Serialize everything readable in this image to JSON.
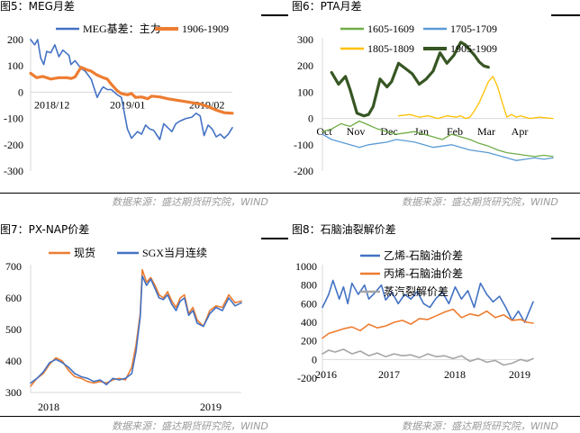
{
  "page": {
    "captions": [
      "图5：MEG月差",
      "图6：PTA月差",
      "图7：PX-NAP价差",
      "图8：石脑油裂解价差"
    ],
    "source": "数据来源：盛达期货研究院，WIND"
  },
  "chart_data": [
    {
      "type": "line",
      "title": "",
      "yticks": [
        -300,
        -200,
        -100,
        0,
        100,
        200
      ],
      "ylim": [
        -300,
        200
      ],
      "xticks": [
        "2018/12",
        "2019/01",
        "2019/02"
      ],
      "legend": "top",
      "grid": false,
      "colors": {
        "MEG基差：主力": "#4472C4",
        "1906-1909": "#ED7D31"
      },
      "series": [
        {
          "name": "MEG基差：主力",
          "color": "#4472C4",
          "width": 1.6,
          "x": [
            0,
            0.02,
            0.035,
            0.05,
            0.065,
            0.08,
            0.1,
            0.12,
            0.14,
            0.16,
            0.19,
            0.2,
            0.22,
            0.25,
            0.27,
            0.3,
            0.33,
            0.35,
            0.36,
            0.38,
            0.4,
            0.43,
            0.45,
            0.48,
            0.5,
            0.53,
            0.55,
            0.57,
            0.59,
            0.61,
            0.64,
            0.66,
            0.7,
            0.72,
            0.74,
            0.77,
            0.8,
            0.82,
            0.84,
            0.86,
            0.88,
            0.9,
            0.92,
            0.94,
            0.96,
            0.98,
            1.0
          ],
          "y": [
            200,
            180,
            200,
            130,
            105,
            155,
            150,
            180,
            135,
            160,
            140,
            105,
            120,
            90,
            80,
            50,
            -20,
            10,
            20,
            10,
            10,
            -10,
            -20,
            -140,
            -175,
            -150,
            -160,
            -125,
            -140,
            -145,
            -180,
            -120,
            -150,
            -120,
            -110,
            -100,
            -95,
            -80,
            -90,
            -165,
            -125,
            -140,
            -170,
            -160,
            -175,
            -160,
            -135
          ]
        },
        {
          "name": "1906-1909",
          "color": "#ED7D31",
          "width": 3.2,
          "x": [
            0,
            0.03,
            0.06,
            0.1,
            0.14,
            0.18,
            0.2,
            0.22,
            0.25,
            0.28,
            0.3,
            0.33,
            0.36,
            0.38,
            0.4,
            0.43,
            0.45,
            0.48,
            0.5,
            0.52,
            0.55,
            0.58,
            0.6,
            0.64,
            0.68,
            0.72,
            0.76,
            0.8,
            0.84,
            0.88,
            0.92,
            0.96,
            1.0
          ],
          "y": [
            72,
            55,
            60,
            50,
            55,
            55,
            52,
            58,
            95,
            85,
            80,
            65,
            55,
            50,
            30,
            5,
            -5,
            -10,
            -5,
            -20,
            -18,
            -25,
            -15,
            -18,
            -25,
            -30,
            -35,
            -40,
            -45,
            -55,
            -68,
            -78,
            -80
          ]
        }
      ]
    },
    {
      "type": "line",
      "title": "",
      "yticks": [
        -200,
        -100,
        0,
        100,
        200,
        300
      ],
      "ylim": [
        -200,
        300
      ],
      "xticks": [
        "Oct",
        "Nov",
        "Dec",
        "Jan",
        "Feb",
        "Mar",
        "Apr"
      ],
      "legend": "top",
      "grid": false,
      "colors": {
        "1605-1609": "#70AD47",
        "1705-1709": "#5B9BD5",
        "1805-1809": "#FFC000",
        "1905-1909": "#375623"
      },
      "series": [
        {
          "name": "1605-1609",
          "color": "#70AD47",
          "width": 1.3,
          "x": [
            0,
            0.04,
            0.08,
            0.12,
            0.16,
            0.2,
            0.24,
            0.28,
            0.32,
            0.36,
            0.4,
            0.44,
            0.48,
            0.52,
            0.56,
            0.6,
            0.64,
            0.68,
            0.72,
            0.76,
            0.8,
            0.84,
            0.88,
            0.92,
            0.96,
            1.0
          ],
          "y": [
            -50,
            -40,
            -20,
            -30,
            -10,
            -25,
            -40,
            -50,
            -60,
            -55,
            -50,
            -60,
            -70,
            -80,
            -60,
            -70,
            -80,
            -95,
            -105,
            -120,
            -130,
            -135,
            -140,
            -145,
            -140,
            -145
          ]
        },
        {
          "name": "1705-1709",
          "color": "#5B9BD5",
          "width": 1.3,
          "x": [
            0,
            0.04,
            0.08,
            0.12,
            0.16,
            0.2,
            0.24,
            0.28,
            0.32,
            0.36,
            0.4,
            0.44,
            0.48,
            0.52,
            0.56,
            0.6,
            0.64,
            0.68,
            0.72,
            0.76,
            0.8,
            0.84,
            0.88,
            0.92,
            0.96,
            1.0
          ],
          "y": [
            -60,
            -80,
            -90,
            -100,
            -110,
            -100,
            -95,
            -90,
            -80,
            -85,
            -90,
            -100,
            -110,
            -105,
            -100,
            -110,
            -120,
            -125,
            -130,
            -140,
            -150,
            -160,
            -155,
            -150,
            -155,
            -150
          ]
        },
        {
          "name": "1805-1809",
          "color": "#FFC000",
          "width": 1.3,
          "x": [
            0.33,
            0.38,
            0.42,
            0.46,
            0.5,
            0.54,
            0.58,
            0.6,
            0.62,
            0.64,
            0.66,
            0.68,
            0.7,
            0.72,
            0.74,
            0.76,
            0.78,
            0.8,
            0.82,
            0.84,
            0.86,
            0.9,
            0.94,
            1.0
          ],
          "y": [
            10,
            15,
            5,
            10,
            0,
            10,
            5,
            10,
            0,
            5,
            30,
            60,
            100,
            140,
            160,
            120,
            60,
            5,
            15,
            5,
            10,
            0,
            5,
            0
          ]
        },
        {
          "name": "1905-1909",
          "color": "#375623",
          "width": 3.2,
          "x": [
            0.04,
            0.07,
            0.1,
            0.12,
            0.15,
            0.18,
            0.2,
            0.22,
            0.25,
            0.28,
            0.3,
            0.33,
            0.36,
            0.39,
            0.42,
            0.45,
            0.48,
            0.51,
            0.54,
            0.57,
            0.6,
            0.62,
            0.64,
            0.66,
            0.68,
            0.7,
            0.72
          ],
          "y": [
            175,
            130,
            160,
            110,
            20,
            10,
            15,
            45,
            150,
            120,
            140,
            210,
            190,
            170,
            130,
            150,
            180,
            250,
            210,
            240,
            290,
            280,
            260,
            240,
            215,
            200,
            195
          ]
        }
      ]
    },
    {
      "type": "line",
      "title": "",
      "yticks": [
        300,
        400,
        500,
        600,
        700
      ],
      "ylim": [
        300,
        700
      ],
      "xticks": [
        "2018",
        "2019"
      ],
      "legend": "top",
      "grid": false,
      "colors": {
        "现货": "#ED7D31",
        "SGX当月连续": "#4472C4"
      },
      "series": [
        {
          "name": "现货",
          "color": "#ED7D31",
          "width": 1.6,
          "x": [
            0,
            0.03,
            0.06,
            0.09,
            0.12,
            0.15,
            0.18,
            0.21,
            0.24,
            0.27,
            0.3,
            0.33,
            0.36,
            0.39,
            0.42,
            0.45,
            0.48,
            0.5,
            0.52,
            0.53,
            0.55,
            0.57,
            0.59,
            0.61,
            0.63,
            0.65,
            0.67,
            0.69,
            0.71,
            0.73,
            0.75,
            0.77,
            0.79,
            0.82,
            0.85,
            0.88,
            0.91,
            0.94,
            0.97,
            1.0
          ],
          "y": [
            320,
            345,
            360,
            390,
            410,
            400,
            370,
            350,
            345,
            335,
            330,
            335,
            330,
            340,
            345,
            340,
            380,
            450,
            550,
            690,
            650,
            665,
            640,
            610,
            600,
            620,
            590,
            570,
            600,
            610,
            550,
            570,
            530,
            510,
            560,
            575,
            570,
            610,
            585,
            590
          ]
        },
        {
          "name": "SGX当月连续",
          "color": "#4472C4",
          "width": 1.6,
          "x": [
            0,
            0.03,
            0.06,
            0.09,
            0.12,
            0.15,
            0.18,
            0.21,
            0.24,
            0.27,
            0.3,
            0.33,
            0.36,
            0.39,
            0.42,
            0.45,
            0.48,
            0.5,
            0.52,
            0.53,
            0.55,
            0.57,
            0.59,
            0.61,
            0.63,
            0.65,
            0.67,
            0.69,
            0.71,
            0.73,
            0.75,
            0.77,
            0.79,
            0.82,
            0.85,
            0.88,
            0.91,
            0.94,
            0.97,
            1.0
          ],
          "y": [
            330,
            345,
            365,
            395,
            405,
            395,
            380,
            360,
            350,
            345,
            335,
            340,
            325,
            345,
            340,
            345,
            360,
            430,
            540,
            670,
            640,
            660,
            630,
            600,
            595,
            610,
            580,
            560,
            590,
            600,
            545,
            560,
            520,
            510,
            550,
            570,
            560,
            600,
            575,
            585
          ]
        }
      ]
    },
    {
      "type": "line",
      "title": "",
      "yticks": [
        -200,
        0,
        200,
        400,
        600,
        800,
        1000
      ],
      "ylim": [
        -200,
        1000
      ],
      "xticks": [
        "2016",
        "2017",
        "2018",
        "2019"
      ],
      "legend": "top",
      "grid": false,
      "colors": {
        "乙烯-石脑油价差": "#4472C4",
        "丙烯-石脑油价差": "#ED7D31",
        "蒸汽裂解价差": "#A5A5A5"
      },
      "series": [
        {
          "name": "乙烯-石脑油价差",
          "color": "#4472C4",
          "width": 1.6,
          "x": [
            0,
            0.03,
            0.05,
            0.08,
            0.1,
            0.12,
            0.14,
            0.17,
            0.2,
            0.22,
            0.25,
            0.28,
            0.3,
            0.33,
            0.36,
            0.39,
            0.42,
            0.45,
            0.48,
            0.51,
            0.54,
            0.57,
            0.6,
            0.63,
            0.66,
            0.69,
            0.72,
            0.75,
            0.78,
            0.81,
            0.84,
            0.87,
            0.9,
            0.93,
            0.96,
            1.0
          ],
          "y": [
            560,
            700,
            850,
            650,
            780,
            600,
            820,
            700,
            800,
            650,
            720,
            800,
            640,
            720,
            600,
            700,
            650,
            730,
            600,
            560,
            660,
            720,
            600,
            780,
            650,
            740,
            560,
            820,
            700,
            620,
            680,
            560,
            420,
            520,
            400,
            620
          ]
        },
        {
          "name": "丙烯-石脑油价差",
          "color": "#ED7D31",
          "width": 1.6,
          "x": [
            0,
            0.03,
            0.06,
            0.1,
            0.14,
            0.18,
            0.22,
            0.26,
            0.3,
            0.34,
            0.38,
            0.42,
            0.46,
            0.5,
            0.54,
            0.58,
            0.62,
            0.66,
            0.7,
            0.74,
            0.78,
            0.82,
            0.86,
            0.9,
            0.94,
            0.97,
            1.0
          ],
          "y": [
            230,
            280,
            300,
            330,
            350,
            310,
            380,
            340,
            360,
            400,
            420,
            380,
            440,
            430,
            470,
            510,
            540,
            450,
            490,
            470,
            520,
            450,
            480,
            420,
            430,
            400,
            390
          ]
        },
        {
          "name": "蒸汽裂解价差",
          "color": "#A5A5A5",
          "width": 1.6,
          "x": [
            0,
            0.03,
            0.06,
            0.1,
            0.14,
            0.18,
            0.22,
            0.26,
            0.3,
            0.34,
            0.38,
            0.42,
            0.46,
            0.5,
            0.54,
            0.58,
            0.62,
            0.66,
            0.7,
            0.74,
            0.78,
            0.82,
            0.86,
            0.9,
            0.94,
            0.97,
            1.0
          ],
          "y": [
            60,
            100,
            80,
            110,
            60,
            90,
            40,
            70,
            30,
            60,
            40,
            50,
            20,
            60,
            30,
            40,
            10,
            40,
            -20,
            10,
            -30,
            -10,
            -60,
            -40,
            0,
            -20,
            10
          ]
        }
      ]
    }
  ]
}
